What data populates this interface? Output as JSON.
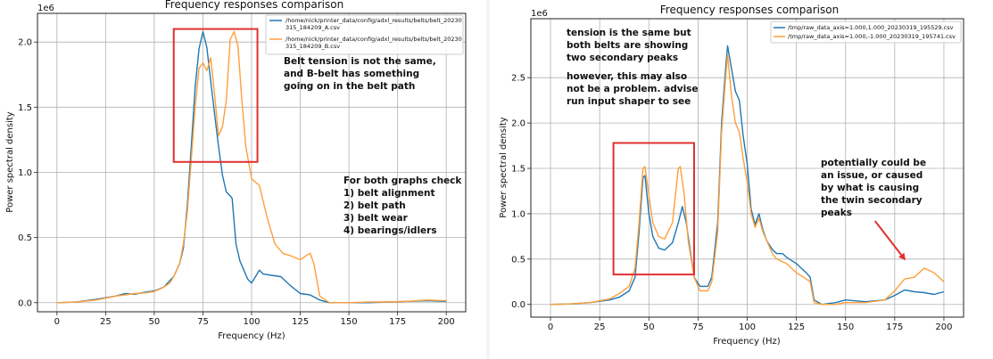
{
  "chart_data": [
    {
      "type": "line",
      "title": "Frequency responses comparison",
      "xlabel": "Frequency (Hz)",
      "ylabel": "Power spectral density",
      "scale_label": "1e6",
      "scale_factor": 1000000,
      "xlim": [
        -10,
        210
      ],
      "ylim": [
        -0.07,
        2.22
      ],
      "x_ticks": [
        0,
        25,
        50,
        75,
        100,
        125,
        150,
        175,
        200
      ],
      "y_ticks": [
        0.0,
        0.5,
        1.0,
        1.5,
        2.0
      ],
      "y_tick_labels": [
        "0.0",
        "0.5",
        "1.0",
        "1.5",
        "2.0"
      ],
      "grid": true,
      "legend_position": "top-right",
      "series": [
        {
          "name": "/home/nick/printer_data/config/adxl_results/belts/belt_20230315_184209_A.csv",
          "legend_lines": [
            "/home/nick/printer_data/config/adxl_results/belts/belt_20230",
            "315_184209_A.csv"
          ],
          "color": "#1f77b4",
          "points": [
            [
              0,
              0
            ],
            [
              10,
              0.005
            ],
            [
              20,
              0.025
            ],
            [
              30,
              0.05
            ],
            [
              35,
              0.07
            ],
            [
              40,
              0.065
            ],
            [
              45,
              0.08
            ],
            [
              50,
              0.09
            ],
            [
              55,
              0.12
            ],
            [
              58,
              0.17
            ],
            [
              60,
              0.2
            ],
            [
              63,
              0.3
            ],
            [
              65,
              0.42
            ],
            [
              67,
              0.75
            ],
            [
              69,
              1.2
            ],
            [
              71,
              1.65
            ],
            [
              73,
              1.95
            ],
            [
              75,
              2.08
            ],
            [
              77,
              1.96
            ],
            [
              79,
              1.7
            ],
            [
              81,
              1.45
            ],
            [
              83,
              1.2
            ],
            [
              85,
              0.98
            ],
            [
              87,
              0.85
            ],
            [
              89,
              0.82
            ],
            [
              90,
              0.8
            ],
            [
              92,
              0.45
            ],
            [
              94,
              0.32
            ],
            [
              96,
              0.25
            ],
            [
              98,
              0.18
            ],
            [
              100,
              0.15
            ],
            [
              102,
              0.2
            ],
            [
              104,
              0.25
            ],
            [
              106,
              0.22
            ],
            [
              110,
              0.21
            ],
            [
              115,
              0.2
            ],
            [
              120,
              0.13
            ],
            [
              125,
              0.07
            ],
            [
              130,
              0.06
            ],
            [
              135,
              0.02
            ],
            [
              140,
              0.0
            ],
            [
              150,
              0.0
            ],
            [
              160,
              0.0
            ],
            [
              170,
              0.005
            ],
            [
              180,
              0.01
            ],
            [
              190,
              0.015
            ],
            [
              200,
              0.01
            ]
          ]
        },
        {
          "name": "/home/nick/printer_data/config/adxl_results/belts/belt_20230315_184209_B.csv",
          "legend_lines": [
            "/home/nick/printer_data/config/adxl_results/belts/belt_20230",
            "315_184209_B.csv"
          ],
          "color": "#ff9f3c",
          "points": [
            [
              0,
              0
            ],
            [
              10,
              0.005
            ],
            [
              20,
              0.02
            ],
            [
              30,
              0.05
            ],
            [
              35,
              0.06
            ],
            [
              40,
              0.07
            ],
            [
              45,
              0.075
            ],
            [
              50,
              0.085
            ],
            [
              55,
              0.12
            ],
            [
              58,
              0.15
            ],
            [
              60,
              0.2
            ],
            [
              63,
              0.3
            ],
            [
              65,
              0.45
            ],
            [
              67,
              0.7
            ],
            [
              69,
              1.1
            ],
            [
              71,
              1.5
            ],
            [
              73,
              1.8
            ],
            [
              75,
              1.84
            ],
            [
              77,
              1.78
            ],
            [
              79,
              1.88
            ],
            [
              81,
              1.6
            ],
            [
              83,
              1.28
            ],
            [
              85,
              1.35
            ],
            [
              87,
              1.55
            ],
            [
              89,
              2.02
            ],
            [
              91,
              2.08
            ],
            [
              93,
              1.97
            ],
            [
              95,
              1.55
            ],
            [
              97,
              1.2
            ],
            [
              100,
              0.95
            ],
            [
              104,
              0.9
            ],
            [
              108,
              0.65
            ],
            [
              112,
              0.45
            ],
            [
              116,
              0.38
            ],
            [
              120,
              0.36
            ],
            [
              125,
              0.33
            ],
            [
              128,
              0.36
            ],
            [
              130,
              0.38
            ],
            [
              132,
              0.3
            ],
            [
              135,
              0.05
            ],
            [
              140,
              0.0
            ],
            [
              150,
              0.0
            ],
            [
              160,
              0.005
            ],
            [
              170,
              0.005
            ],
            [
              180,
              0.01
            ],
            [
              190,
              0.02
            ],
            [
              200,
              0.015
            ]
          ]
        }
      ],
      "annotations": [
        {
          "lines": [
            "Belt tension is not the same,",
            "and B-belt has something",
            "going on in the belt path"
          ]
        },
        {
          "lines": [
            "For both graphs check",
            "1) belt alignment",
            "2) belt path",
            "3) belt wear",
            "4) bearings/idlers"
          ]
        }
      ],
      "highlight_box": {
        "x": [
          60,
          103
        ],
        "y": [
          1.08,
          2.1
        ],
        "color": "#e03030"
      }
    },
    {
      "type": "line",
      "title": "Frequency responses comparison",
      "xlabel": "Frequency (Hz)",
      "ylabel": "Power spectral density",
      "scale_label": "1e6",
      "scale_factor": 1000000,
      "xlim": [
        -10,
        210
      ],
      "ylim": [
        -0.14,
        3.15
      ],
      "x_ticks": [
        0,
        25,
        50,
        75,
        100,
        125,
        150,
        175,
        200
      ],
      "y_ticks": [
        0.0,
        0.5,
        1.0,
        1.5,
        2.0,
        2.5
      ],
      "y_tick_labels": [
        "0.0",
        "0.5",
        "1.0",
        "1.5",
        "2.0",
        "2.5"
      ],
      "grid": true,
      "legend_position": "top-right",
      "series": [
        {
          "name": "/tmp/raw_data_axis=1.000,1.000_20230319_195529.csv",
          "legend_lines": [
            "/tmp/raw_data_axis=1.000,1.000_20230319_195529.csv"
          ],
          "color": "#1f77b4",
          "points": [
            [
              0,
              0
            ],
            [
              10,
              0.005
            ],
            [
              20,
              0.02
            ],
            [
              30,
              0.05
            ],
            [
              35,
              0.08
            ],
            [
              40,
              0.15
            ],
            [
              43,
              0.3
            ],
            [
              45,
              0.8
            ],
            [
              47,
              1.4
            ],
            [
              48,
              1.42
            ],
            [
              50,
              1.0
            ],
            [
              52,
              0.75
            ],
            [
              55,
              0.62
            ],
            [
              58,
              0.6
            ],
            [
              62,
              0.68
            ],
            [
              65,
              0.9
            ],
            [
              67,
              1.08
            ],
            [
              69,
              0.9
            ],
            [
              71,
              0.6
            ],
            [
              73,
              0.3
            ],
            [
              76,
              0.2
            ],
            [
              80,
              0.2
            ],
            [
              82,
              0.3
            ],
            [
              85,
              0.9
            ],
            [
              87,
              2.0
            ],
            [
              89,
              2.6
            ],
            [
              90,
              2.85
            ],
            [
              92,
              2.6
            ],
            [
              94,
              2.35
            ],
            [
              96,
              2.25
            ],
            [
              98,
              1.85
            ],
            [
              100,
              1.55
            ],
            [
              102,
              1.05
            ],
            [
              104,
              0.88
            ],
            [
              106,
              1.0
            ],
            [
              108,
              0.82
            ],
            [
              110,
              0.7
            ],
            [
              113,
              0.6
            ],
            [
              115,
              0.56
            ],
            [
              118,
              0.56
            ],
            [
              120,
              0.52
            ],
            [
              125,
              0.45
            ],
            [
              130,
              0.35
            ],
            [
              132,
              0.3
            ],
            [
              134,
              0.05
            ],
            [
              138,
              0.0
            ],
            [
              145,
              0.02
            ],
            [
              150,
              0.05
            ],
            [
              160,
              0.03
            ],
            [
              170,
              0.05
            ],
            [
              175,
              0.1
            ],
            [
              180,
              0.16
            ],
            [
              185,
              0.14
            ],
            [
              190,
              0.13
            ],
            [
              195,
              0.11
            ],
            [
              200,
              0.14
            ]
          ]
        },
        {
          "name": "/tmp/raw_data_axis=1.000,-1.000_20230319_195741.csv",
          "legend_lines": [
            "/tmp/raw_data_axis=1.000,-1.000_20230319_195741.csv"
          ],
          "color": "#ff9f3c",
          "points": [
            [
              0,
              0
            ],
            [
              10,
              0.005
            ],
            [
              20,
              0.02
            ],
            [
              30,
              0.06
            ],
            [
              35,
              0.12
            ],
            [
              40,
              0.2
            ],
            [
              43,
              0.4
            ],
            [
              45,
              0.9
            ],
            [
              47,
              1.5
            ],
            [
              48,
              1.52
            ],
            [
              50,
              1.2
            ],
            [
              52,
              0.9
            ],
            [
              55,
              0.75
            ],
            [
              58,
              0.72
            ],
            [
              62,
              0.9
            ],
            [
              65,
              1.5
            ],
            [
              66,
              1.52
            ],
            [
              68,
              1.2
            ],
            [
              70,
              0.7
            ],
            [
              73,
              0.3
            ],
            [
              76,
              0.15
            ],
            [
              80,
              0.15
            ],
            [
              82,
              0.25
            ],
            [
              85,
              0.8
            ],
            [
              87,
              1.9
            ],
            [
              89,
              2.5
            ],
            [
              90,
              2.75
            ],
            [
              92,
              2.3
            ],
            [
              94,
              2.0
            ],
            [
              96,
              1.9
            ],
            [
              98,
              1.6
            ],
            [
              100,
              1.35
            ],
            [
              102,
              1.0
            ],
            [
              104,
              0.85
            ],
            [
              106,
              0.95
            ],
            [
              108,
              0.8
            ],
            [
              110,
              0.7
            ],
            [
              113,
              0.55
            ],
            [
              115,
              0.5
            ],
            [
              118,
              0.47
            ],
            [
              120,
              0.45
            ],
            [
              125,
              0.35
            ],
            [
              130,
              0.28
            ],
            [
              132,
              0.25
            ],
            [
              134,
              0.02
            ],
            [
              138,
              0.0
            ],
            [
              145,
              0.0
            ],
            [
              150,
              0.02
            ],
            [
              160,
              0.02
            ],
            [
              170,
              0.05
            ],
            [
              175,
              0.15
            ],
            [
              180,
              0.28
            ],
            [
              185,
              0.3
            ],
            [
              190,
              0.4
            ],
            [
              195,
              0.35
            ],
            [
              200,
              0.25
            ]
          ]
        }
      ],
      "annotations": [
        {
          "lines": [
            "tension is the same but",
            "both belts are showing",
            "two secondary peaks",
            "",
            "however, this may also",
            "not be a problem.  advise",
            "run input shaper to see"
          ]
        },
        {
          "lines": [
            "potentially could be",
            "an issue, or caused",
            "by what is causing",
            "the twin secondary",
            "peaks"
          ]
        }
      ],
      "highlight_box": {
        "x": [
          32,
          73
        ],
        "y": [
          0.33,
          1.78
        ],
        "color": "#e03030"
      },
      "arrow": {
        "from": [
          165,
          0.92
        ],
        "to": [
          180,
          0.5
        ],
        "color": "#e03030"
      }
    }
  ]
}
